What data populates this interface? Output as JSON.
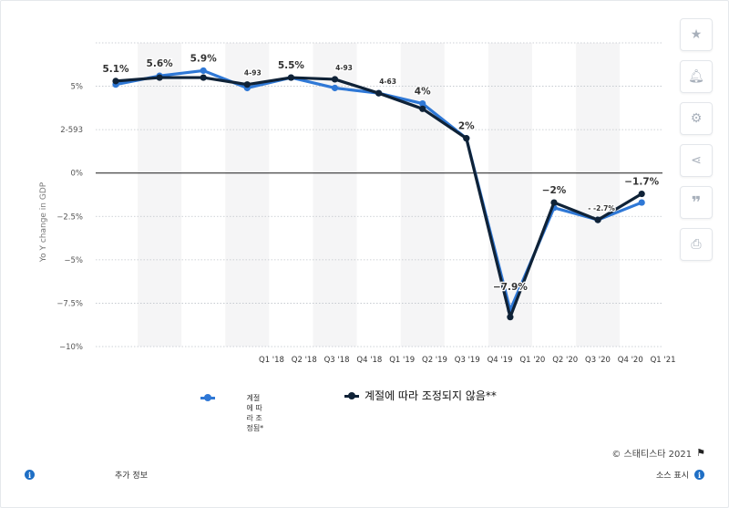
{
  "chart_data": {
    "type": "line",
    "ylabel": "Yo Y change in GDP",
    "ylim": [
      -10,
      7.5
    ],
    "yticks": [
      {
        "v": 5,
        "label": "5%"
      },
      {
        "v": 2.5,
        "label": "2-593"
      },
      {
        "v": 0,
        "label": "0%"
      },
      {
        "v": -2.5,
        "label": "−2.5%"
      },
      {
        "v": -5,
        "label": "−5%"
      },
      {
        "v": -7.5,
        "label": "−7.5%"
      },
      {
        "v": -10,
        "label": "−10%"
      }
    ],
    "x_ticks": [
      "Q1 '18",
      "Q2 '18",
      "Q3 '18",
      "Q4 '18",
      "Q1 '19",
      "Q2 '19",
      "Q3 '19",
      "Q4 '19",
      "Q1 '20",
      "Q2 '20",
      "Q3 '20",
      "Q4 '20",
      "Q1 '21"
    ],
    "series": [
      {
        "name": "계절에 따라 조정됨*",
        "color": "#2f78d6",
        "values": [
          5.1,
          5.6,
          5.9,
          4.9,
          5.5,
          4.9,
          4.6,
          4.0,
          2.0,
          -7.9,
          -2.0,
          -2.7,
          -1.7
        ]
      },
      {
        "name": "계절에 따라 조정되지 않음**",
        "color": "#0f2237",
        "values": [
          5.3,
          5.5,
          5.5,
          5.1,
          5.5,
          5.4,
          4.6,
          3.7,
          2.0,
          -8.3,
          -1.7,
          -2.7,
          -1.2
        ]
      }
    ],
    "data_labels": [
      "5.1%",
      "5.6%",
      "5.9%",
      "4-93",
      "5.5%",
      "4-93",
      "4-63",
      "4%",
      "2%",
      "−7.9%",
      "−2%",
      "- -2.7%",
      "−1.7%"
    ],
    "grid": true
  },
  "footer": {
    "source": "© 스태티스타 2021",
    "more_info": "추가 정보",
    "show_source": "소스 표시"
  },
  "sidebar": {
    "icons": [
      "star-icon",
      "bell-icon",
      "gear-icon",
      "share-icon",
      "quote-icon",
      "print-icon"
    ]
  }
}
